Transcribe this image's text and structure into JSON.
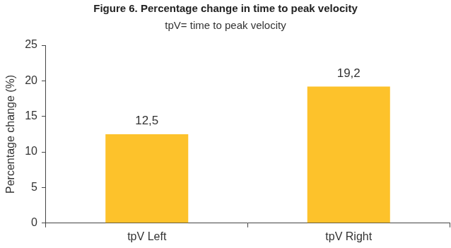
{
  "chart_data": {
    "type": "bar",
    "title": "Figure 6. Percentage change in time to peak velocity",
    "subtitle": "tpV= time to peak velocity",
    "y_label": "Percentage change (%)",
    "categories": [
      "tpV Left",
      "tpV Right"
    ],
    "values": [
      12.5,
      19.2
    ],
    "value_labels": [
      "12,5",
      "19,2"
    ],
    "color": "#fdc22b",
    "ylim": [
      0,
      25
    ],
    "yticks": [
      0,
      5,
      10,
      15,
      20,
      25
    ],
    "grid": false,
    "data_labels": true
  }
}
